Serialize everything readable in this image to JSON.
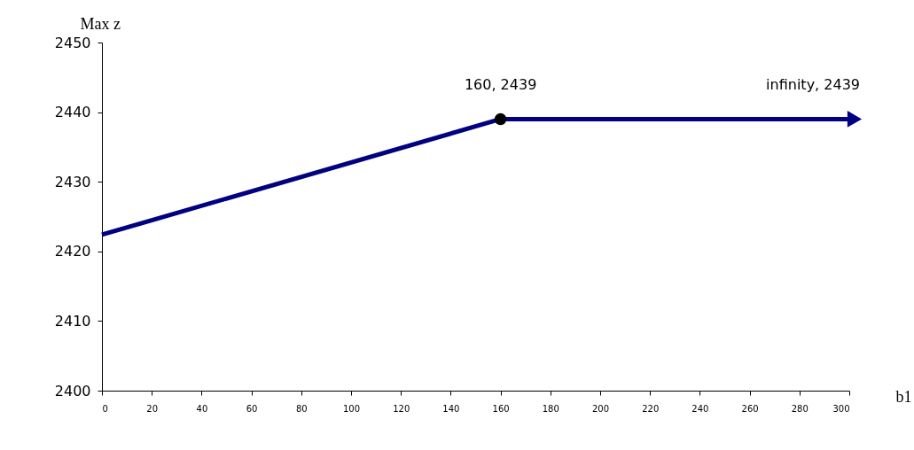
{
  "chart_data": {
    "type": "line",
    "xlabel": "b1",
    "ylabel": "Max z",
    "xlim": [
      0,
      300
    ],
    "xticks": [
      0,
      20,
      40,
      60,
      80,
      100,
      120,
      140,
      160,
      180,
      200,
      220,
      240,
      260,
      280,
      300
    ],
    "ylim": [
      2400,
      2450
    ],
    "yticks": [
      2400,
      2410,
      2420,
      2430,
      2440,
      2450
    ],
    "grid": false,
    "legend": false,
    "series": [
      {
        "color": "#000080",
        "x": [
          0,
          160,
          300
        ],
        "values": [
          2422.4,
          2439,
          2439
        ],
        "marker": "none",
        "line_style": "solid"
      },
      {
        "type": "scatter",
        "color": "#000000",
        "x": [
          160
        ],
        "values": [
          2439
        ],
        "marker": "circle"
      }
    ],
    "annotations": [
      {
        "text": "160, 2439",
        "x": 160,
        "y": 2439
      },
      {
        "text": "infinity, 2439",
        "x": 300,
        "y": 2439
      }
    ]
  }
}
